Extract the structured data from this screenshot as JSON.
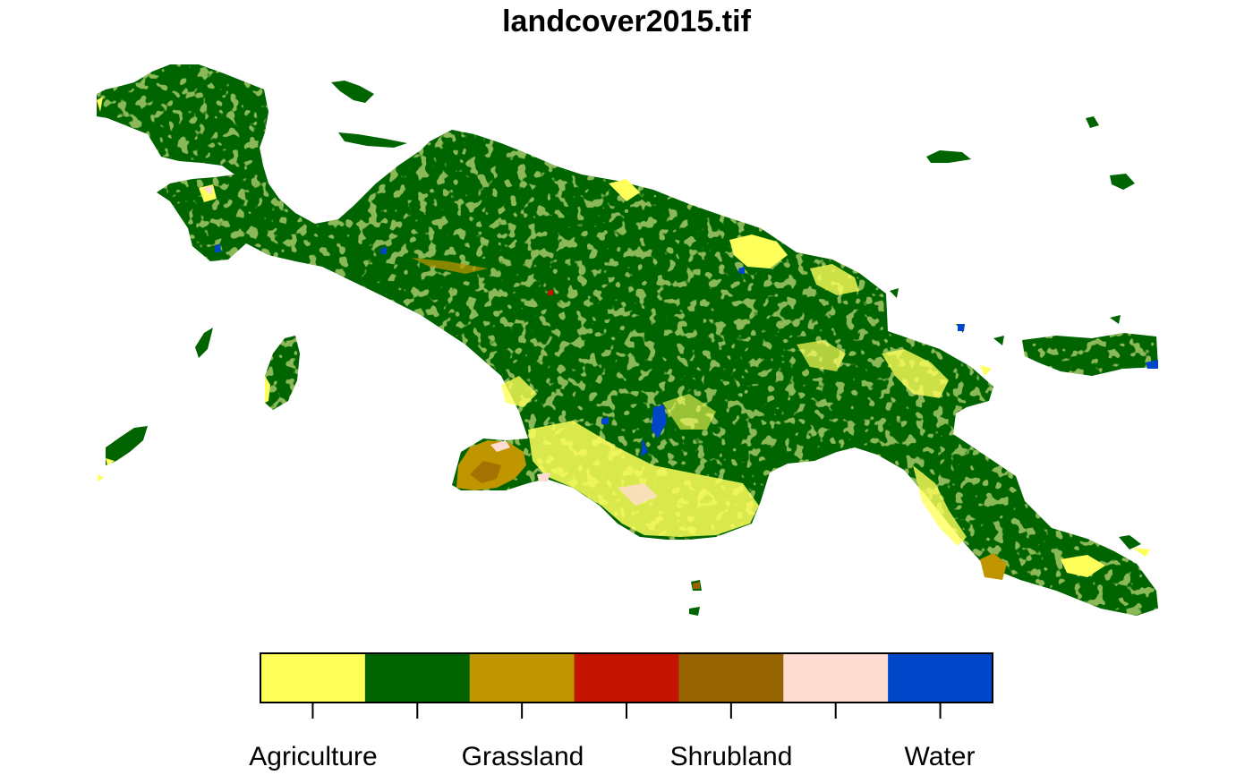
{
  "title": "landcover2015.tif",
  "palette": {
    "agriculture": "#ffff5a",
    "forest": "#006400",
    "grassland": "#c09600",
    "wetland": "#c31400",
    "shrubland": "#966400",
    "sparse": "#fedcd2",
    "water": "#0046c8"
  },
  "legend": {
    "classes": [
      {
        "color": "#ffff5a"
      },
      {
        "color": "#006400"
      },
      {
        "color": "#c09600"
      },
      {
        "color": "#c31400"
      },
      {
        "color": "#966400"
      },
      {
        "color": "#fedcd2"
      },
      {
        "color": "#0046c8"
      }
    ],
    "labels": [
      "Agriculture",
      "Grassland",
      "Shrubland",
      "Water"
    ]
  }
}
